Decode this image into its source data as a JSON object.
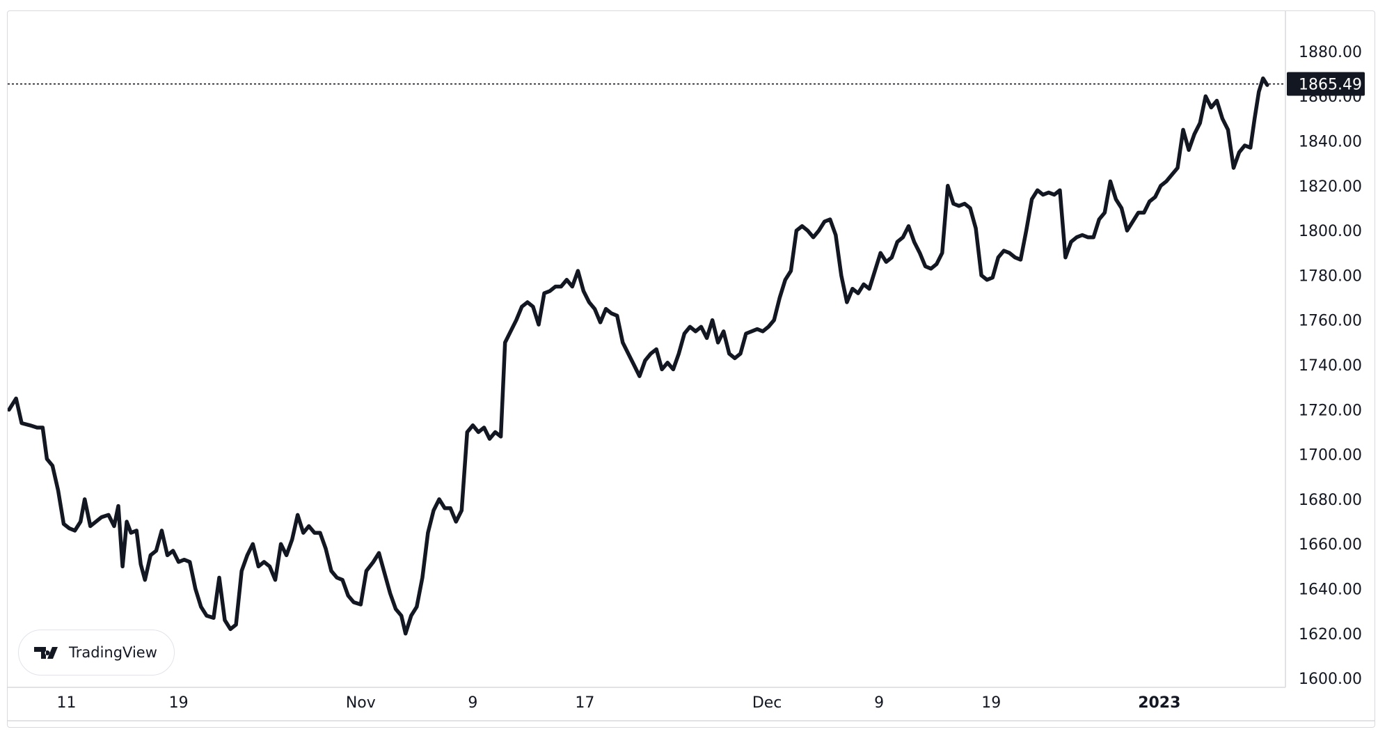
{
  "chart_data": {
    "type": "line",
    "title": "",
    "xlabel": "",
    "ylabel": "",
    "ylim": [
      1596,
      1898
    ],
    "y_ticks": [
      "1600.00",
      "1620.00",
      "1640.00",
      "1660.00",
      "1680.00",
      "1700.00",
      "1720.00",
      "1740.00",
      "1760.00",
      "1780.00",
      "1800.00",
      "1820.00",
      "1840.00",
      "1860.00",
      "1880.00"
    ],
    "x_ticks": [
      {
        "label": "11",
        "t": 3,
        "bold": false
      },
      {
        "label": "19",
        "t": 11,
        "bold": false
      },
      {
        "label": "Nov",
        "t": 24,
        "bold": false
      },
      {
        "label": "9",
        "t": 32,
        "bold": false
      },
      {
        "label": "17",
        "t": 40,
        "bold": false
      },
      {
        "label": "Dec",
        "t": 53,
        "bold": false
      },
      {
        "label": "9",
        "t": 61,
        "bold": false
      },
      {
        "label": "19",
        "t": 69,
        "bold": false
      },
      {
        "label": "2023",
        "t": 81,
        "bold": true
      }
    ],
    "x_range": [
      -1.2,
      90
    ],
    "last_price": 1865.49,
    "last_price_label": "1865.49",
    "grid": false,
    "series": [
      {
        "points": [
          [
            -1.1,
            1720
          ],
          [
            -0.6,
            1725
          ],
          [
            -0.2,
            1714
          ],
          [
            0.4,
            1713
          ],
          [
            0.9,
            1712
          ],
          [
            1.3,
            1712
          ],
          [
            1.6,
            1698
          ],
          [
            2.0,
            1695
          ],
          [
            2.4,
            1684
          ],
          [
            2.8,
            1669
          ],
          [
            3.2,
            1667
          ],
          [
            3.6,
            1666
          ],
          [
            4.0,
            1670
          ],
          [
            4.3,
            1680
          ],
          [
            4.7,
            1668
          ],
          [
            5.1,
            1670
          ],
          [
            5.5,
            1672
          ],
          [
            6.0,
            1673
          ],
          [
            6.4,
            1668
          ],
          [
            6.7,
            1677
          ],
          [
            7.0,
            1650
          ],
          [
            7.3,
            1670
          ],
          [
            7.6,
            1665
          ],
          [
            8.0,
            1666
          ],
          [
            8.3,
            1651
          ],
          [
            8.6,
            1644
          ],
          [
            9.0,
            1655
          ],
          [
            9.4,
            1657
          ],
          [
            9.8,
            1666
          ],
          [
            10.2,
            1655
          ],
          [
            10.6,
            1657
          ],
          [
            11.0,
            1652
          ],
          [
            11.4,
            1653
          ],
          [
            11.8,
            1652
          ],
          [
            12.2,
            1640
          ],
          [
            12.6,
            1632
          ],
          [
            13.0,
            1628
          ],
          [
            13.5,
            1627
          ],
          [
            13.9,
            1645
          ],
          [
            14.3,
            1626
          ],
          [
            14.7,
            1622
          ],
          [
            15.1,
            1624
          ],
          [
            15.5,
            1648
          ],
          [
            15.9,
            1655
          ],
          [
            16.3,
            1660
          ],
          [
            16.7,
            1650
          ],
          [
            17.1,
            1652
          ],
          [
            17.5,
            1650
          ],
          [
            17.9,
            1644
          ],
          [
            18.3,
            1660
          ],
          [
            18.7,
            1655
          ],
          [
            19.1,
            1662
          ],
          [
            19.5,
            1673
          ],
          [
            19.9,
            1665
          ],
          [
            20.3,
            1668
          ],
          [
            20.7,
            1665
          ],
          [
            21.1,
            1665
          ],
          [
            21.5,
            1658
          ],
          [
            21.9,
            1648
          ],
          [
            22.3,
            1645
          ],
          [
            22.7,
            1644
          ],
          [
            23.1,
            1637
          ],
          [
            23.5,
            1634
          ],
          [
            24.0,
            1633
          ],
          [
            24.4,
            1648
          ],
          [
            24.9,
            1652
          ],
          [
            25.3,
            1656
          ],
          [
            25.7,
            1647
          ],
          [
            26.1,
            1638
          ],
          [
            26.5,
            1631
          ],
          [
            26.9,
            1628
          ],
          [
            27.2,
            1620
          ],
          [
            27.6,
            1628
          ],
          [
            28.0,
            1632
          ],
          [
            28.4,
            1645
          ],
          [
            28.8,
            1665
          ],
          [
            29.2,
            1675
          ],
          [
            29.6,
            1680
          ],
          [
            30.0,
            1676
          ],
          [
            30.4,
            1676
          ],
          [
            30.8,
            1670
          ],
          [
            31.2,
            1675
          ],
          [
            31.6,
            1710
          ],
          [
            32.0,
            1713
          ],
          [
            32.4,
            1710
          ],
          [
            32.8,
            1712
          ],
          [
            33.2,
            1707
          ],
          [
            33.6,
            1710
          ],
          [
            34.0,
            1708
          ],
          [
            34.3,
            1750
          ],
          [
            34.7,
            1755
          ],
          [
            35.1,
            1760
          ],
          [
            35.5,
            1766
          ],
          [
            35.9,
            1768
          ],
          [
            36.3,
            1766
          ],
          [
            36.7,
            1758
          ],
          [
            37.1,
            1772
          ],
          [
            37.5,
            1773
          ],
          [
            37.9,
            1775
          ],
          [
            38.3,
            1775
          ],
          [
            38.7,
            1778
          ],
          [
            39.1,
            1775
          ],
          [
            39.5,
            1782
          ],
          [
            39.9,
            1773
          ],
          [
            40.3,
            1768
          ],
          [
            40.7,
            1765
          ],
          [
            41.1,
            1759
          ],
          [
            41.5,
            1765
          ],
          [
            41.9,
            1763
          ],
          [
            42.3,
            1762
          ],
          [
            42.7,
            1750
          ],
          [
            43.1,
            1745
          ],
          [
            43.5,
            1740
          ],
          [
            43.9,
            1735
          ],
          [
            44.3,
            1742
          ],
          [
            44.7,
            1745
          ],
          [
            45.1,
            1747
          ],
          [
            45.5,
            1738
          ],
          [
            45.9,
            1741
          ],
          [
            46.3,
            1738
          ],
          [
            46.7,
            1745
          ],
          [
            47.1,
            1754
          ],
          [
            47.5,
            1757
          ],
          [
            47.9,
            1755
          ],
          [
            48.3,
            1757
          ],
          [
            48.7,
            1752
          ],
          [
            49.1,
            1760
          ],
          [
            49.5,
            1750
          ],
          [
            49.9,
            1755
          ],
          [
            50.3,
            1745
          ],
          [
            50.7,
            1743
          ],
          [
            51.1,
            1745
          ],
          [
            51.5,
            1754
          ],
          [
            51.9,
            1755
          ],
          [
            52.3,
            1756
          ],
          [
            52.7,
            1755
          ],
          [
            53.1,
            1757
          ],
          [
            53.5,
            1760
          ],
          [
            53.9,
            1770
          ],
          [
            54.3,
            1778
          ],
          [
            54.7,
            1782
          ],
          [
            55.1,
            1800
          ],
          [
            55.5,
            1802
          ],
          [
            55.9,
            1800
          ],
          [
            56.3,
            1797
          ],
          [
            56.7,
            1800
          ],
          [
            57.1,
            1804
          ],
          [
            57.5,
            1805
          ],
          [
            57.9,
            1798
          ],
          [
            58.3,
            1780
          ],
          [
            58.7,
            1768
          ],
          [
            59.1,
            1774
          ],
          [
            59.5,
            1772
          ],
          [
            59.9,
            1776
          ],
          [
            60.3,
            1774
          ],
          [
            60.7,
            1782
          ],
          [
            61.1,
            1790
          ],
          [
            61.5,
            1786
          ],
          [
            61.9,
            1788
          ],
          [
            62.3,
            1795
          ],
          [
            62.7,
            1797
          ],
          [
            63.1,
            1802
          ],
          [
            63.5,
            1795
          ],
          [
            63.9,
            1790
          ],
          [
            64.3,
            1784
          ],
          [
            64.7,
            1783
          ],
          [
            65.1,
            1785
          ],
          [
            65.5,
            1790
          ],
          [
            65.9,
            1820
          ],
          [
            66.3,
            1812
          ],
          [
            66.7,
            1811
          ],
          [
            67.1,
            1812
          ],
          [
            67.5,
            1810
          ],
          [
            67.9,
            1801
          ],
          [
            68.3,
            1780
          ],
          [
            68.7,
            1778
          ],
          [
            69.1,
            1779
          ],
          [
            69.5,
            1788
          ],
          [
            69.9,
            1791
          ],
          [
            70.3,
            1790
          ],
          [
            70.7,
            1788
          ],
          [
            71.1,
            1787
          ],
          [
            71.5,
            1800
          ],
          [
            71.9,
            1814
          ],
          [
            72.3,
            1818
          ],
          [
            72.7,
            1816
          ],
          [
            73.1,
            1817
          ],
          [
            73.5,
            1816
          ],
          [
            73.9,
            1818
          ],
          [
            74.3,
            1788
          ],
          [
            74.7,
            1795
          ],
          [
            75.1,
            1797
          ],
          [
            75.5,
            1798
          ],
          [
            75.9,
            1797
          ],
          [
            76.3,
            1797
          ],
          [
            76.7,
            1805
          ],
          [
            77.1,
            1808
          ],
          [
            77.5,
            1822
          ],
          [
            77.9,
            1814
          ],
          [
            78.3,
            1810
          ],
          [
            78.7,
            1800
          ],
          [
            79.1,
            1804
          ],
          [
            79.5,
            1808
          ],
          [
            79.9,
            1808
          ],
          [
            80.3,
            1813
          ],
          [
            80.7,
            1815
          ],
          [
            81.1,
            1820
          ],
          [
            81.5,
            1822
          ],
          [
            81.9,
            1825
          ],
          [
            82.3,
            1828
          ],
          [
            82.7,
            1845
          ],
          [
            83.1,
            1836
          ],
          [
            83.5,
            1843
          ],
          [
            83.9,
            1848
          ],
          [
            84.3,
            1860
          ],
          [
            84.7,
            1855
          ],
          [
            85.1,
            1858
          ],
          [
            85.5,
            1850
          ],
          [
            85.9,
            1845
          ],
          [
            86.3,
            1828
          ],
          [
            86.7,
            1835
          ],
          [
            87.1,
            1838
          ],
          [
            87.5,
            1837
          ],
          [
            87.8,
            1850
          ],
          [
            88.1,
            1862
          ],
          [
            88.4,
            1868
          ],
          [
            88.7,
            1865
          ]
        ]
      }
    ]
  },
  "logo_text": "TradingView",
  "colors": {
    "line": "#131722",
    "text": "#131722",
    "label_bg": "#131722",
    "label_text": "#ffffff",
    "frame": "#d7d9de"
  }
}
